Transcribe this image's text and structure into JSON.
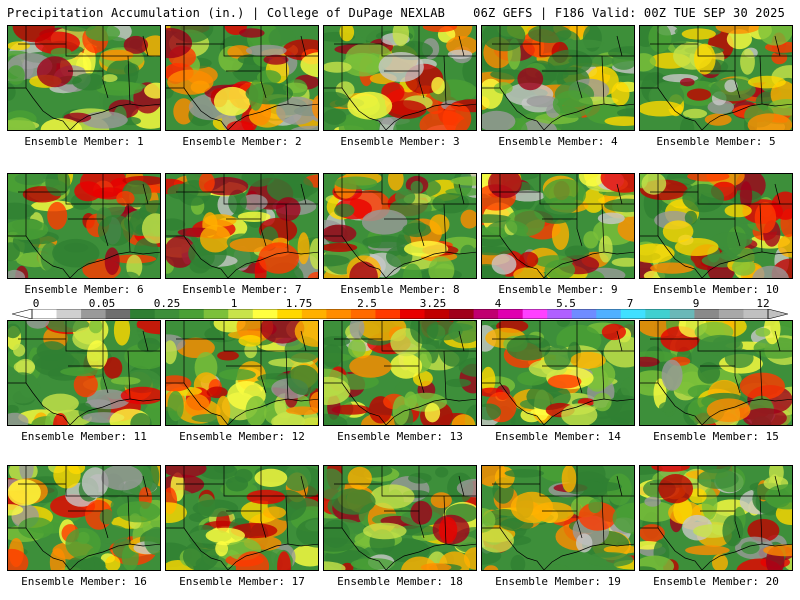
{
  "header": {
    "left": "Precipitation Accumulation (in.) | College of DuPage NEXLAB",
    "right": "06Z GEFS | F186 Valid: 00Z TUE SEP 30 2025"
  },
  "colorbar": {
    "tick_labels": [
      "0",
      "0.05",
      "0.25",
      "1",
      "1.75",
      "2.5",
      "3.25",
      "4",
      "5.5",
      "7",
      "9",
      "12"
    ],
    "colors": [
      "#ffffff",
      "#d0d0d0",
      "#9a9a9a",
      "#6e6e6e",
      "#2f7f32",
      "#3d8f3a",
      "#4aa035",
      "#7cc03a",
      "#c8e34a",
      "#ffff40",
      "#ffd800",
      "#ffb000",
      "#ff8c00",
      "#ff6a00",
      "#ff3a00",
      "#e80000",
      "#c00000",
      "#a0001a",
      "#c00070",
      "#e000b0",
      "#ff40ff",
      "#b060ff",
      "#6f8cff",
      "#50b0ff",
      "#40e0ff",
      "#40d0d0",
      "#6ab8b8",
      "#8a8a8a",
      "#a8a8a8",
      "#c0c0c0"
    ]
  },
  "members": [
    {
      "label": "Ensemble Member: 1"
    },
    {
      "label": "Ensemble Member: 2"
    },
    {
      "label": "Ensemble Member: 3"
    },
    {
      "label": "Ensemble Member: 4"
    },
    {
      "label": "Ensemble Member: 5"
    },
    {
      "label": "Ensemble Member: 6"
    },
    {
      "label": "Ensemble Member: 7"
    },
    {
      "label": "Ensemble Member: 8"
    },
    {
      "label": "Ensemble Member: 9"
    },
    {
      "label": "Ensemble Member: 10"
    },
    {
      "label": "Ensemble Member: 11"
    },
    {
      "label": "Ensemble Member: 12"
    },
    {
      "label": "Ensemble Member: 13"
    },
    {
      "label": "Ensemble Member: 14"
    },
    {
      "label": "Ensemble Member: 15"
    },
    {
      "label": "Ensemble Member: 16"
    },
    {
      "label": "Ensemble Member: 17"
    },
    {
      "label": "Ensemble Member: 18"
    },
    {
      "label": "Ensemble Member: 19"
    },
    {
      "label": "Ensemble Member: 20"
    }
  ]
}
